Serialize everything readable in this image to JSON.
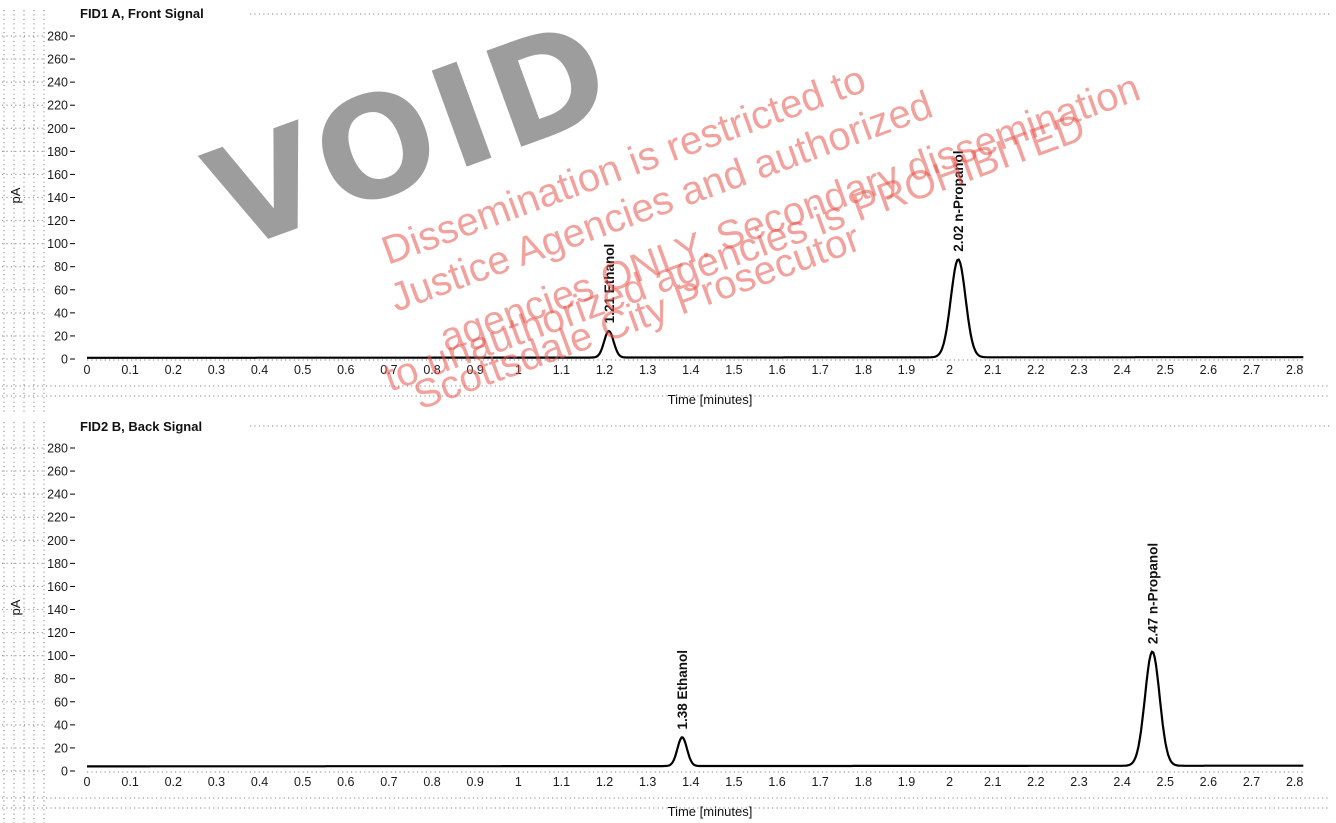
{
  "chart_data": [
    {
      "type": "line",
      "title": "FID1 A, Front Signal",
      "xlabel": "Time [minutes]",
      "ylabel": "pA",
      "xlim": [
        0,
        2.82
      ],
      "ylim": [
        0,
        290
      ],
      "xticks": [
        "0",
        "0.1",
        "0.2",
        "0.3",
        "0.4",
        "0.5",
        "0.6",
        "0.7",
        "0.8",
        "0.9",
        "1",
        "1.1",
        "1.2",
        "1.3",
        "1.4",
        "1.5",
        "1.6",
        "1.7",
        "1.8",
        "1.9",
        "2",
        "2.1",
        "2.2",
        "2.3",
        "2.4",
        "2.5",
        "2.6",
        "2.7",
        "2.8"
      ],
      "yticks": [
        "0",
        "20",
        "40",
        "60",
        "80",
        "100",
        "120",
        "140",
        "160",
        "180",
        "200",
        "220",
        "240",
        "260",
        "280"
      ],
      "baseline_pA": 1,
      "peaks": [
        {
          "time": 1.21,
          "height_pA": 24,
          "label": "1.21  Ethanol"
        },
        {
          "time": 2.02,
          "height_pA": 86,
          "label": "2.02  n-Propanol"
        }
      ],
      "grid": true
    },
    {
      "type": "line",
      "title": "FID2 B, Back Signal",
      "xlabel": "Time [minutes]",
      "ylabel": "pA",
      "xlim": [
        0,
        2.82
      ],
      "ylim": [
        0,
        290
      ],
      "xticks": [
        "0",
        "0.1",
        "0.2",
        "0.3",
        "0.4",
        "0.5",
        "0.6",
        "0.7",
        "0.8",
        "0.9",
        "1",
        "1.1",
        "1.2",
        "1.3",
        "1.4",
        "1.5",
        "1.6",
        "1.7",
        "1.8",
        "1.9",
        "2",
        "2.1",
        "2.2",
        "2.3",
        "2.4",
        "2.5",
        "2.6",
        "2.7",
        "2.8"
      ],
      "yticks": [
        "0",
        "20",
        "40",
        "60",
        "80",
        "100",
        "120",
        "140",
        "160",
        "180",
        "200",
        "220",
        "240",
        "260",
        "280"
      ],
      "baseline_pA": 4,
      "peaks": [
        {
          "time": 1.38,
          "height_pA": 29,
          "label": "1.38  Ethanol"
        },
        {
          "time": 2.47,
          "height_pA": 103,
          "label": "2.47  n-Propanol"
        }
      ],
      "grid": true
    }
  ],
  "watermark": {
    "stamp": "VOID",
    "lines": [
      "Dissemination is restricted to",
      "Justice Agencies and authorized",
      "agencies ONLY. Secondary dissemination",
      "to unauthorized agencies is PROHIBITED",
      "Scottsdale City Prosecutor"
    ],
    "color": "#e8534a"
  }
}
